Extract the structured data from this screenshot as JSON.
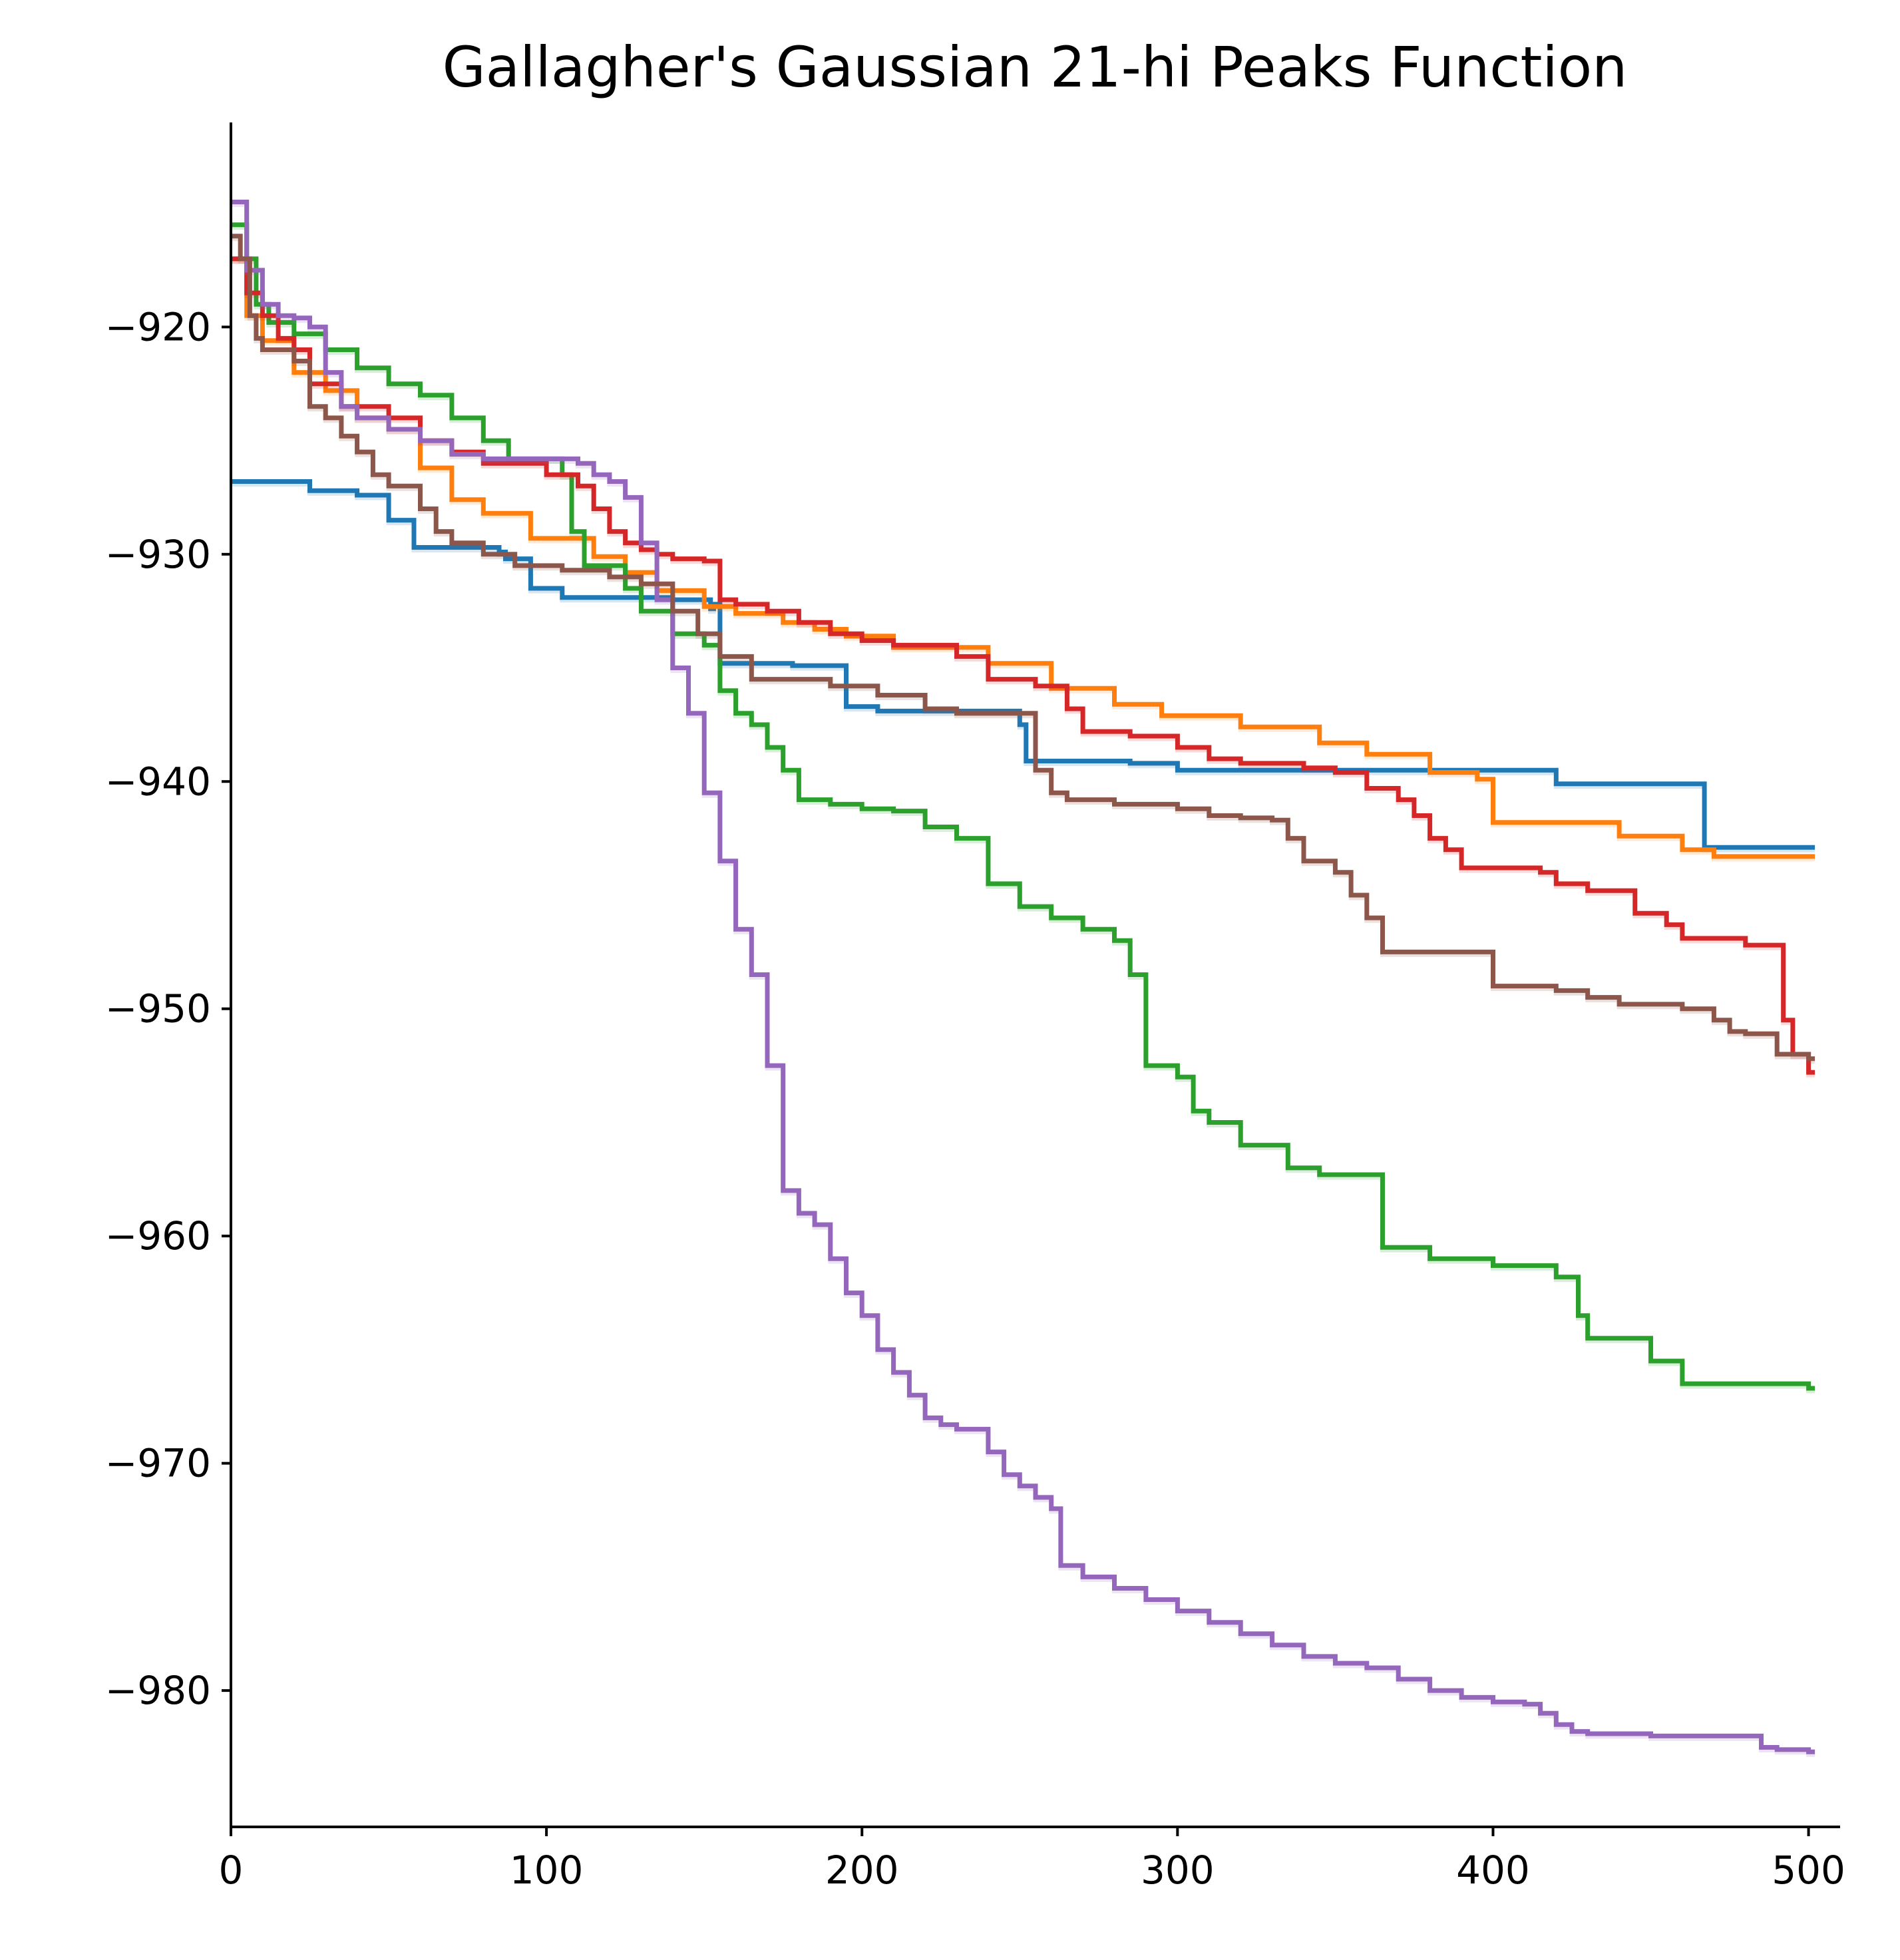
{
  "chart_data": {
    "type": "line",
    "title": "Gallagher's Gaussian 21-hi Peaks Function",
    "xlabel": "",
    "ylabel": "",
    "xlim": [
      0,
      510
    ],
    "ylim": [
      -986,
      -911
    ],
    "x_ticks": [
      0,
      100,
      200,
      300,
      400,
      500
    ],
    "x_tick_labels": [
      "0",
      "100",
      "200",
      "300",
      "400",
      "500"
    ],
    "y_ticks": [
      -920,
      -930,
      -940,
      -950,
      -960,
      -970,
      -980
    ],
    "y_tick_labels": [
      "−920",
      "−930",
      "−940",
      "−950",
      "−960",
      "−970",
      "−980"
    ],
    "grid": false,
    "legend": "none",
    "series": [
      {
        "color": "#1f77b4",
        "x": [
          0,
          18,
          25,
          40,
          50,
          58,
          85,
          87,
          95,
          105,
          140,
          152,
          153,
          155,
          178,
          195,
          205,
          250,
          252,
          285,
          300,
          380,
          420,
          466,
          467,
          485
        ],
        "y": [
          -926.8,
          -926.8,
          -927.2,
          -927.4,
          -928.5,
          -929.7,
          -929.9,
          -930.2,
          -931.5,
          -931.9,
          -932.0,
          -932.4,
          -932.2,
          -934.8,
          -934.9,
          -936.7,
          -936.9,
          -937.5,
          -939.1,
          -939.2,
          -939.5,
          -939.5,
          -940.1,
          -940.1,
          -942.9,
          -942.9
        ]
      },
      {
        "color": "#ff7f0e",
        "x": [
          0,
          5,
          10,
          20,
          30,
          40,
          50,
          60,
          70,
          80,
          95,
          115,
          125,
          135,
          150,
          160,
          175,
          185,
          195,
          210,
          240,
          260,
          280,
          295,
          320,
          345,
          360,
          380,
          395,
          400,
          430,
          440,
          460,
          470,
          500
        ],
        "y": [
          -917.0,
          -919.5,
          -920.6,
          -922.0,
          -922.8,
          -924.0,
          -924.5,
          -926.2,
          -927.6,
          -928.2,
          -929.3,
          -930.1,
          -930.8,
          -931.6,
          -932.3,
          -932.6,
          -933.0,
          -933.3,
          -933.6,
          -934.1,
          -934.8,
          -935.9,
          -936.6,
          -937.1,
          -937.6,
          -938.3,
          -938.8,
          -939.6,
          -939.9,
          -941.8,
          -941.8,
          -942.4,
          -943.0,
          -943.3,
          -943.3
        ]
      },
      {
        "color": "#2ca02c",
        "x": [
          0,
          5,
          8,
          12,
          20,
          30,
          40,
          50,
          60,
          70,
          80,
          88,
          100,
          105,
          108,
          112,
          115,
          125,
          130,
          140,
          150,
          155,
          160,
          165,
          170,
          175,
          180,
          190,
          200,
          210,
          220,
          230,
          240,
          250,
          260,
          270,
          280,
          285,
          290,
          300,
          305,
          310,
          320,
          335,
          345,
          360,
          365,
          380,
          400,
          420,
          427,
          430,
          450,
          460,
          500
        ],
        "y": [
          -915.5,
          -917.0,
          -919.0,
          -919.8,
          -920.3,
          -921.0,
          -921.8,
          -922.5,
          -923.0,
          -924.0,
          -925.0,
          -925.8,
          -925.8,
          -926.5,
          -929.0,
          -930.5,
          -930.5,
          -931.5,
          -932.5,
          -933.5,
          -934.0,
          -936.0,
          -937.0,
          -937.5,
          -938.5,
          -939.5,
          -940.8,
          -941.0,
          -941.2,
          -941.3,
          -942.0,
          -942.5,
          -944.5,
          -945.5,
          -946.0,
          -946.5,
          -947.0,
          -948.5,
          -952.5,
          -953.0,
          -954.5,
          -955.0,
          -956.0,
          -957.0,
          -957.3,
          -957.3,
          -960.5,
          -961.0,
          -961.3,
          -961.8,
          -963.5,
          -964.5,
          -965.5,
          -966.5,
          -966.7
        ]
      },
      {
        "color": "#d62728",
        "x": [
          0,
          5,
          10,
          15,
          20,
          25,
          35,
          50,
          60,
          70,
          80,
          100,
          110,
          115,
          120,
          125,
          130,
          135,
          140,
          150,
          155,
          160,
          170,
          180,
          190,
          200,
          210,
          230,
          240,
          255,
          265,
          270,
          285,
          300,
          310,
          320,
          340,
          350,
          360,
          370,
          375,
          380,
          385,
          390,
          400,
          415,
          420,
          430,
          445,
          455,
          460,
          480,
          490,
          492,
          495,
          500
        ],
        "y": [
          -917.0,
          -918.5,
          -919.5,
          -920.5,
          -921.0,
          -922.5,
          -923.5,
          -924.0,
          -925.0,
          -925.5,
          -926.0,
          -926.5,
          -927.0,
          -928.0,
          -929.0,
          -929.5,
          -929.8,
          -930.0,
          -930.2,
          -930.3,
          -932.0,
          -932.2,
          -932.5,
          -933.0,
          -933.5,
          -933.8,
          -934.0,
          -934.5,
          -935.5,
          -935.8,
          -936.8,
          -937.8,
          -938.0,
          -938.5,
          -939.0,
          -939.2,
          -939.4,
          -939.6,
          -940.3,
          -940.8,
          -941.5,
          -942.5,
          -943.0,
          -943.8,
          -943.8,
          -944.0,
          -944.5,
          -944.8,
          -945.8,
          -946.3,
          -946.9,
          -947.2,
          -947.2,
          -950.5,
          -952.0,
          -952.8
        ]
      },
      {
        "color": "#9467bd",
        "x": [
          0,
          5,
          10,
          15,
          20,
          25,
          30,
          35,
          40,
          50,
          60,
          70,
          80,
          100,
          110,
          115,
          120,
          125,
          130,
          135,
          140,
          145,
          150,
          155,
          160,
          165,
          170,
          175,
          180,
          185,
          190,
          195,
          200,
          205,
          210,
          215,
          220,
          225,
          230,
          240,
          245,
          250,
          255,
          260,
          263,
          270,
          280,
          290,
          300,
          310,
          320,
          330,
          340,
          350,
          360,
          370,
          380,
          390,
          400,
          410,
          415,
          420,
          425,
          430,
          440,
          450,
          480,
          485,
          490,
          500
        ],
        "y": [
          -914.5,
          -917.5,
          -919.0,
          -919.5,
          -919.6,
          -920.0,
          -922.0,
          -923.5,
          -924.0,
          -924.5,
          -925.0,
          -925.6,
          -925.8,
          -925.8,
          -926.0,
          -926.5,
          -926.8,
          -927.5,
          -929.5,
          -932.0,
          -935.0,
          -937.0,
          -940.5,
          -943.5,
          -946.5,
          -948.5,
          -952.5,
          -958.0,
          -959.0,
          -959.5,
          -961.0,
          -962.5,
          -963.5,
          -965.0,
          -966.0,
          -967.0,
          -968.0,
          -968.3,
          -968.5,
          -969.5,
          -970.5,
          -971.0,
          -971.5,
          -972.0,
          -974.5,
          -975.0,
          -975.5,
          -976.0,
          -976.5,
          -977.0,
          -977.5,
          -978.0,
          -978.5,
          -978.8,
          -979.0,
          -979.5,
          -980.0,
          -980.3,
          -980.5,
          -980.6,
          -981.0,
          -981.5,
          -981.8,
          -981.9,
          -981.9,
          -982.0,
          -982.0,
          -982.5,
          -982.6,
          -982.7
        ]
      },
      {
        "color": "#8c564b",
        "x": [
          0,
          3,
          6,
          8,
          10,
          20,
          25,
          30,
          35,
          40,
          45,
          50,
          60,
          65,
          70,
          80,
          90,
          105,
          120,
          130,
          140,
          148,
          155,
          165,
          190,
          205,
          220,
          230,
          255,
          260,
          265,
          280,
          300,
          310,
          320,
          330,
          335,
          340,
          350,
          355,
          360,
          365,
          395,
          400,
          420,
          430,
          440,
          460,
          470,
          475,
          480,
          490,
          500
        ],
        "y": [
          -916.0,
          -917.0,
          -919.5,
          -920.5,
          -921.0,
          -921.5,
          -923.5,
          -924.0,
          -924.8,
          -925.5,
          -926.5,
          -927.0,
          -928.0,
          -929.0,
          -929.5,
          -930.0,
          -930.5,
          -930.7,
          -931.0,
          -931.3,
          -932.5,
          -933.5,
          -934.5,
          -935.5,
          -935.8,
          -936.2,
          -936.8,
          -937.0,
          -939.5,
          -940.5,
          -940.8,
          -941.0,
          -941.2,
          -941.5,
          -941.6,
          -941.7,
          -942.5,
          -943.5,
          -944.0,
          -945.0,
          -946.0,
          -947.5,
          -947.5,
          -949.0,
          -949.2,
          -949.5,
          -949.8,
          -950.0,
          -950.5,
          -951.0,
          -951.1,
          -952.0,
          -952.2
        ]
      }
    ]
  }
}
